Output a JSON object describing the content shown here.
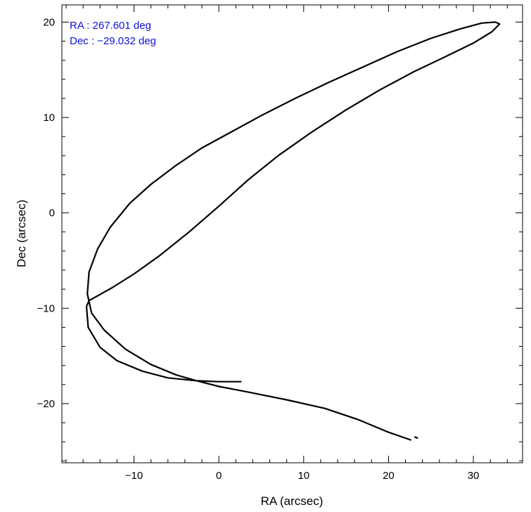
{
  "chart_data": {
    "type": "line",
    "xlabel": "RA (arcsec)",
    "ylabel": "Dec (arcsec)",
    "xlim": [
      -18.5,
      35.8
    ],
    "ylim": [
      -26.2,
      21.8
    ],
    "x_ticks": [
      {
        "value": -10,
        "label": "−10"
      },
      {
        "value": 0,
        "label": "0"
      },
      {
        "value": 10,
        "label": "10"
      },
      {
        "value": 20,
        "label": "20"
      },
      {
        "value": 30,
        "label": "30"
      }
    ],
    "y_ticks": [
      {
        "value": -20,
        "label": "−20"
      },
      {
        "value": -10,
        "label": "−10"
      },
      {
        "value": 0,
        "label": "0"
      },
      {
        "value": 10,
        "label": "10"
      },
      {
        "value": 20,
        "label": "20"
      }
    ],
    "annotations": [
      {
        "text": "RA : 267.601 deg",
        "color": "#1010e0"
      },
      {
        "text": "Dec : −29.032 deg",
        "color": "#1010e0"
      }
    ],
    "grid": false,
    "line_color": "#000000",
    "series": [
      {
        "x": [
          2.6,
          0.0,
          -2.6,
          -5.0,
          -8.0,
          -11.0,
          -13.5,
          -15.0,
          -15.5,
          -15.3,
          -14.3,
          -12.8,
          -10.5,
          -8.0,
          -5.0,
          -2.0,
          1.5,
          5.0,
          9.0,
          13.0,
          17.0,
          21.0,
          25.0,
          28.5,
          31.0,
          32.6,
          33.1,
          32.2,
          30.0,
          27.0,
          23.0,
          19.0,
          15.0,
          11.0,
          7.0,
          3.5,
          0.0,
          -3.5,
          -7.0,
          -10.0,
          -12.5,
          -14.3,
          -15.3,
          -15.6,
          -15.4,
          -14.0,
          -12.0,
          -9.0,
          -6.0,
          -2.6,
          0.0,
          3.5,
          8.0,
          12.5,
          16.5,
          20.0,
          22.6
        ],
        "y": [
          -17.7,
          -17.7,
          -17.6,
          -17.0,
          -15.9,
          -14.3,
          -12.3,
          -10.5,
          -8.5,
          -6.2,
          -3.8,
          -1.5,
          1.0,
          3.0,
          5.0,
          6.8,
          8.5,
          10.2,
          12.0,
          13.7,
          15.3,
          16.9,
          18.3,
          19.3,
          19.9,
          20.0,
          19.8,
          19.0,
          17.8,
          16.5,
          14.8,
          12.9,
          10.8,
          8.5,
          6.0,
          3.5,
          0.7,
          -2.0,
          -4.5,
          -6.4,
          -7.8,
          -8.7,
          -9.2,
          -9.8,
          -12.0,
          -14.1,
          -15.5,
          -16.6,
          -17.3,
          -17.6,
          -18.2,
          -18.8,
          -19.6,
          -20.5,
          -21.7,
          -23.0,
          -23.8
        ]
      },
      {
        "x": [
          23.1,
          23.4
        ],
        "y": [
          -23.5,
          -23.6
        ]
      }
    ]
  }
}
